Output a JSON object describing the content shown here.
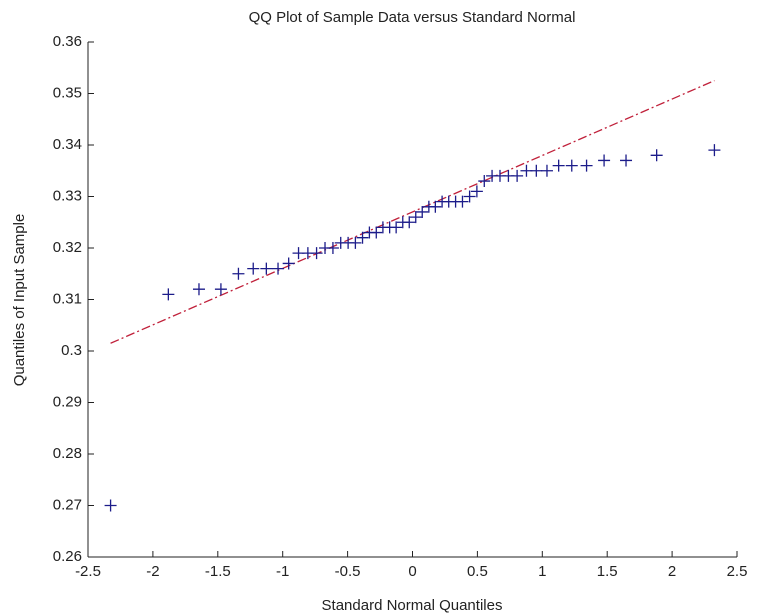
{
  "chart_data": {
    "type": "scatter",
    "title": "QQ Plot of Sample Data versus Standard Normal",
    "x_label": "Standard Normal Quantiles",
    "y_label": "Quantiles of Input Sample",
    "x": [
      -2.326,
      -1.881,
      -1.645,
      -1.476,
      -1.341,
      -1.227,
      -1.126,
      -1.036,
      -0.954,
      -0.878,
      -0.806,
      -0.739,
      -0.674,
      -0.613,
      -0.553,
      -0.496,
      -0.44,
      -0.385,
      -0.332,
      -0.279,
      -0.228,
      -0.176,
      -0.126,
      -0.075,
      -0.025,
      0.025,
      0.075,
      0.126,
      0.176,
      0.228,
      0.279,
      0.332,
      0.385,
      0.44,
      0.496,
      0.553,
      0.613,
      0.674,
      0.739,
      0.806,
      0.878,
      0.954,
      1.036,
      1.126,
      1.227,
      1.341,
      1.476,
      1.645,
      1.881,
      2.326
    ],
    "series": [
      {
        "color": "#1c1c8a",
        "values": [
          0.27,
          0.311,
          0.312,
          0.312,
          0.315,
          0.316,
          0.316,
          0.316,
          0.317,
          0.319,
          0.319,
          0.319,
          0.32,
          0.32,
          0.321,
          0.321,
          0.321,
          0.322,
          0.323,
          0.323,
          0.324,
          0.324,
          0.324,
          0.325,
          0.325,
          0.326,
          0.327,
          0.328,
          0.328,
          0.329,
          0.329,
          0.329,
          0.329,
          0.33,
          0.331,
          0.333,
          0.334,
          0.334,
          0.334,
          0.334,
          0.335,
          0.335,
          0.335,
          0.336,
          0.336,
          0.336,
          0.337,
          0.337,
          0.338,
          0.339
        ]
      }
    ],
    "reference_line": {
      "color": "#c0203a",
      "x": [
        -2.326,
        2.326
      ],
      "values": [
        0.3015,
        0.3525
      ]
    },
    "xlim": [
      -2.5,
      2.5
    ],
    "xticks": [
      -2.5,
      -2,
      -1.5,
      -1,
      -0.5,
      0,
      0.5,
      1,
      1.5,
      2,
      2.5
    ],
    "ylim": [
      0.26,
      0.36
    ],
    "yticks": [
      0.26,
      0.27,
      0.28,
      0.29,
      0.3,
      0.31,
      0.32,
      0.33,
      0.34,
      0.35,
      0.36
    ]
  }
}
